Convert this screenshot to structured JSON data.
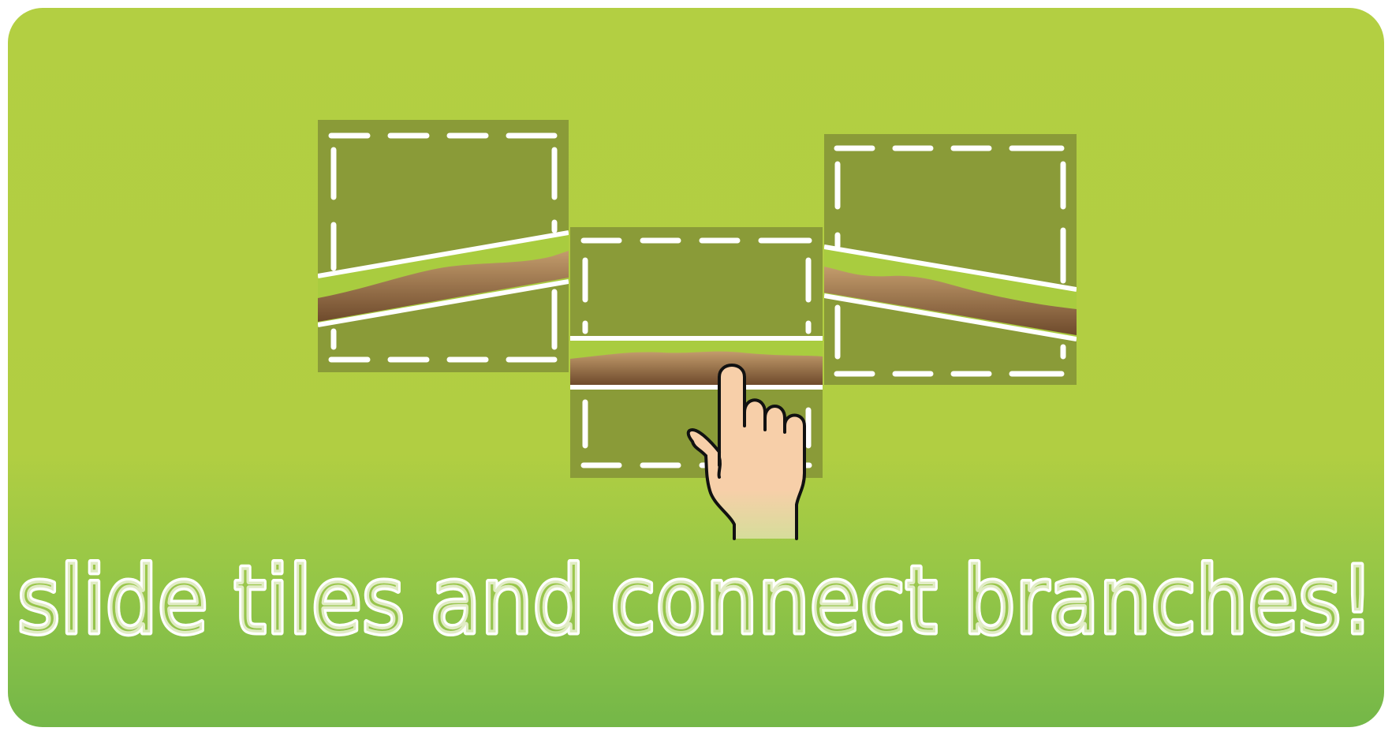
{
  "headline": "slide tiles and connect branches!",
  "colors": {
    "background_top": "#b3cf42",
    "background_bottom": "#74b748",
    "tile_fill": "#8a9b38",
    "dash": "#ffffff",
    "branch_grass": "#a9cc3f",
    "branch_wood_light": "#b79263",
    "branch_wood_dark": "#6e4a2c",
    "hand_skin": "#f7cfa9",
    "hand_outline": "#111111"
  },
  "icons": {
    "gesture": "pointing-hand-icon"
  },
  "tiles": [
    {
      "name": "left-tile",
      "branch": "rising-to-right"
    },
    {
      "name": "center-tile",
      "branch": "horizontal",
      "selected": true
    },
    {
      "name": "right-tile",
      "branch": "falling-to-right"
    }
  ]
}
